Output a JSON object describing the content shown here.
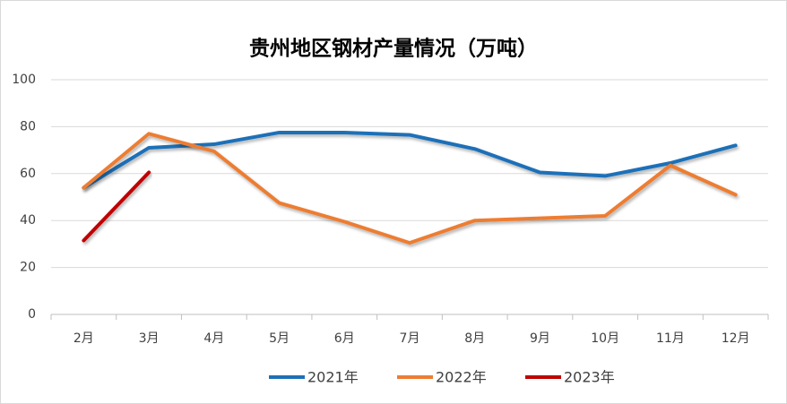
{
  "chart_data": {
    "type": "line",
    "title": "贵州地区钢材产量情况（万吨）",
    "categories": [
      "2月",
      "3月",
      "4月",
      "5月",
      "6月",
      "7月",
      "8月",
      "9月",
      "10月",
      "11月",
      "12月"
    ],
    "series": [
      {
        "name": "2021年",
        "color": "#1f6fb8",
        "values": [
          54,
          71,
          72.5,
          77.5,
          77.5,
          76.5,
          70.5,
          60.5,
          59,
          64.5,
          72
        ]
      },
      {
        "name": "2022年",
        "color": "#ed7d31",
        "values": [
          54,
          77,
          69.5,
          47.5,
          39.5,
          30.5,
          40,
          41,
          42,
          63.5,
          51
        ]
      },
      {
        "name": "2023年",
        "color": "#c00000",
        "values": [
          31.5,
          60.5,
          null,
          null,
          null,
          null,
          null,
          null,
          null,
          null,
          null
        ]
      }
    ],
    "ylim": [
      0,
      100
    ],
    "yticks": [
      0,
      20,
      40,
      60,
      80,
      100
    ],
    "grid": true,
    "legend": "bottom"
  }
}
